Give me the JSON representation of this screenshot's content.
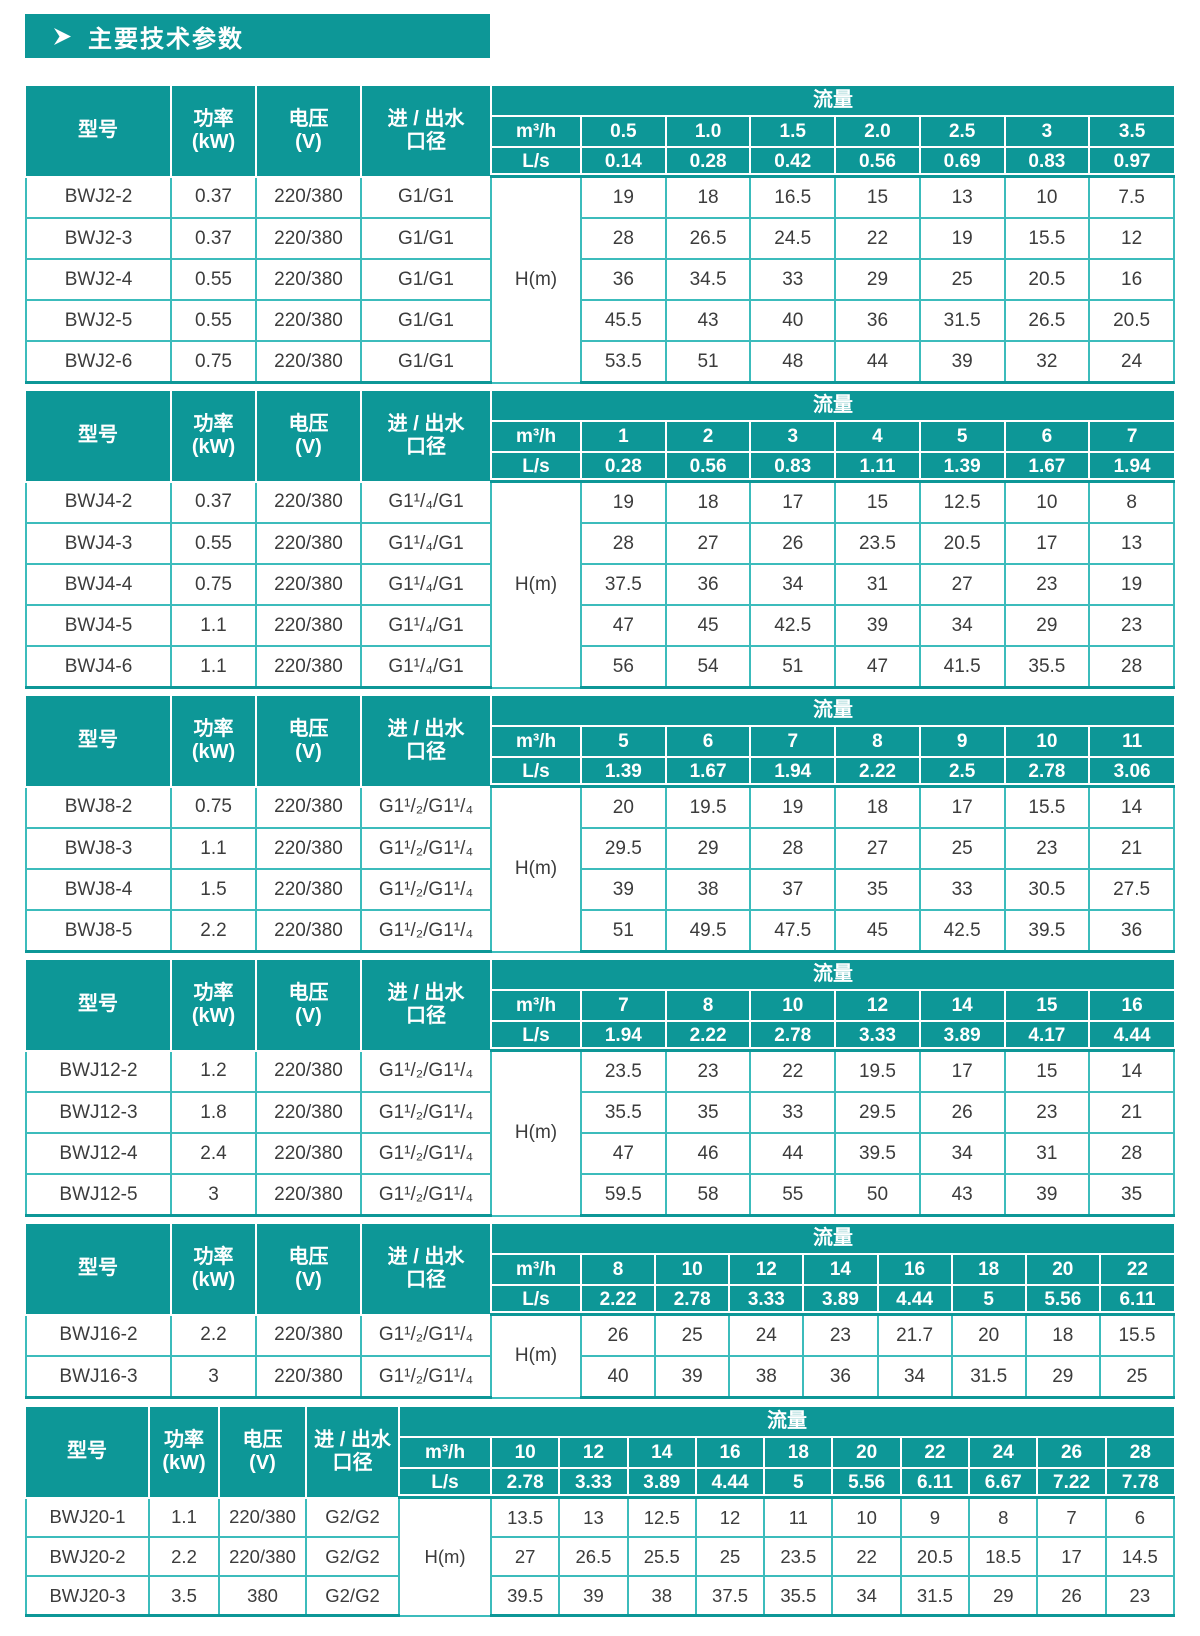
{
  "title": {
    "text": "主要技术参数"
  },
  "colors": {
    "teal": "#0d9797",
    "body_border": "#3cbcbc",
    "header_text": "#ffffff",
    "body_text": "#3c3c3c"
  },
  "column_headers": {
    "model": "型号",
    "power": "功率\n(kW)",
    "voltage": "电压\n(V)",
    "port": "进 / 出水\n口径",
    "flow": "流量",
    "m3h": "m³/h",
    "ls": "L/s",
    "head": "H(m)"
  },
  "tables": [
    {
      "flow_m3h": [
        "0.5",
        "1.0",
        "1.5",
        "2.0",
        "2.5",
        "3",
        "3.5"
      ],
      "flow_ls": [
        "0.14",
        "0.28",
        "0.42",
        "0.56",
        "0.69",
        "0.83",
        "0.97"
      ],
      "rows": [
        {
          "model": "BWJ2-2",
          "power": "0.37",
          "voltage": "220/380",
          "port": "G1/G1",
          "h": [
            "19",
            "18",
            "16.5",
            "15",
            "13",
            "10",
            "7.5"
          ]
        },
        {
          "model": "BWJ2-3",
          "power": "0.37",
          "voltage": "220/380",
          "port": "G1/G1",
          "h": [
            "28",
            "26.5",
            "24.5",
            "22",
            "19",
            "15.5",
            "12"
          ]
        },
        {
          "model": "BWJ2-4",
          "power": "0.55",
          "voltage": "220/380",
          "port": "G1/G1",
          "h": [
            "36",
            "34.5",
            "33",
            "29",
            "25",
            "20.5",
            "16"
          ]
        },
        {
          "model": "BWJ2-5",
          "power": "0.55",
          "voltage": "220/380",
          "port": "G1/G1",
          "h": [
            "45.5",
            "43",
            "40",
            "36",
            "31.5",
            "26.5",
            "20.5"
          ]
        },
        {
          "model": "BWJ2-6",
          "power": "0.75",
          "voltage": "220/380",
          "port": "G1/G1",
          "h": [
            "53.5",
            "51",
            "48",
            "44",
            "39",
            "32",
            "24"
          ]
        }
      ]
    },
    {
      "flow_m3h": [
        "1",
        "2",
        "3",
        "4",
        "5",
        "6",
        "7"
      ],
      "flow_ls": [
        "0.28",
        "0.56",
        "0.83",
        "1.11",
        "1.39",
        "1.67",
        "1.94"
      ],
      "rows": [
        {
          "model": "BWJ4-2",
          "power": "0.37",
          "voltage": "220/380",
          "port": "G1¹/₄/G1",
          "h": [
            "19",
            "18",
            "17",
            "15",
            "12.5",
            "10",
            "8"
          ]
        },
        {
          "model": "BWJ4-3",
          "power": "0.55",
          "voltage": "220/380",
          "port": "G1¹/₄/G1",
          "h": [
            "28",
            "27",
            "26",
            "23.5",
            "20.5",
            "17",
            "13"
          ]
        },
        {
          "model": "BWJ4-4",
          "power": "0.75",
          "voltage": "220/380",
          "port": "G1¹/₄/G1",
          "h": [
            "37.5",
            "36",
            "34",
            "31",
            "27",
            "23",
            "19"
          ]
        },
        {
          "model": "BWJ4-5",
          "power": "1.1",
          "voltage": "220/380",
          "port": "G1¹/₄/G1",
          "h": [
            "47",
            "45",
            "42.5",
            "39",
            "34",
            "29",
            "23"
          ]
        },
        {
          "model": "BWJ4-6",
          "power": "1.1",
          "voltage": "220/380",
          "port": "G1¹/₄/G1",
          "h": [
            "56",
            "54",
            "51",
            "47",
            "41.5",
            "35.5",
            "28"
          ]
        }
      ]
    },
    {
      "flow_m3h": [
        "5",
        "6",
        "7",
        "8",
        "9",
        "10",
        "11"
      ],
      "flow_ls": [
        "1.39",
        "1.67",
        "1.94",
        "2.22",
        "2.5",
        "2.78",
        "3.06"
      ],
      "rows": [
        {
          "model": "BWJ8-2",
          "power": "0.75",
          "voltage": "220/380",
          "port": "G1¹/₂/G1¹/₄",
          "h": [
            "20",
            "19.5",
            "19",
            "18",
            "17",
            "15.5",
            "14"
          ]
        },
        {
          "model": "BWJ8-3",
          "power": "1.1",
          "voltage": "220/380",
          "port": "G1¹/₂/G1¹/₄",
          "h": [
            "29.5",
            "29",
            "28",
            "27",
            "25",
            "23",
            "21"
          ]
        },
        {
          "model": "BWJ8-4",
          "power": "1.5",
          "voltage": "220/380",
          "port": "G1¹/₂/G1¹/₄",
          "h": [
            "39",
            "38",
            "37",
            "35",
            "33",
            "30.5",
            "27.5"
          ]
        },
        {
          "model": "BWJ8-5",
          "power": "2.2",
          "voltage": "220/380",
          "port": "G1¹/₂/G1¹/₄",
          "h": [
            "51",
            "49.5",
            "47.5",
            "45",
            "42.5",
            "39.5",
            "36"
          ]
        }
      ]
    },
    {
      "flow_m3h": [
        "7",
        "8",
        "10",
        "12",
        "14",
        "15",
        "16"
      ],
      "flow_ls": [
        "1.94",
        "2.22",
        "2.78",
        "3.33",
        "3.89",
        "4.17",
        "4.44"
      ],
      "rows": [
        {
          "model": "BWJ12-2",
          "power": "1.2",
          "voltage": "220/380",
          "port": "G1¹/₂/G1¹/₄",
          "h": [
            "23.5",
            "23",
            "22",
            "19.5",
            "17",
            "15",
            "14"
          ]
        },
        {
          "model": "BWJ12-3",
          "power": "1.8",
          "voltage": "220/380",
          "port": "G1¹/₂/G1¹/₄",
          "h": [
            "35.5",
            "35",
            "33",
            "29.5",
            "26",
            "23",
            "21"
          ]
        },
        {
          "model": "BWJ12-4",
          "power": "2.4",
          "voltage": "220/380",
          "port": "G1¹/₂/G1¹/₄",
          "h": [
            "47",
            "46",
            "44",
            "39.5",
            "34",
            "31",
            "28"
          ]
        },
        {
          "model": "BWJ12-5",
          "power": "3",
          "voltage": "220/380",
          "port": "G1¹/₂/G1¹/₄",
          "h": [
            "59.5",
            "58",
            "55",
            "50",
            "43",
            "39",
            "35"
          ]
        }
      ]
    },
    {
      "flow_m3h": [
        "8",
        "10",
        "12",
        "14",
        "16",
        "18",
        "20",
        "22"
      ],
      "flow_ls": [
        "2.22",
        "2.78",
        "3.33",
        "3.89",
        "4.44",
        "5",
        "5.56",
        "6.11"
      ],
      "rows": [
        {
          "model": "BWJ16-2",
          "power": "2.2",
          "voltage": "220/380",
          "port": "G1¹/₂/G1¹/₄",
          "h": [
            "26",
            "25",
            "24",
            "23",
            "21.7",
            "20",
            "18",
            "15.5"
          ]
        },
        {
          "model": "BWJ16-3",
          "power": "3",
          "voltage": "220/380",
          "port": "G1¹/₂/G1¹/₄",
          "h": [
            "40",
            "39",
            "38",
            "36",
            "34",
            "31.5",
            "29",
            "25"
          ]
        }
      ]
    },
    {
      "flow_m3h": [
        "10",
        "12",
        "14",
        "16",
        "18",
        "20",
        "22",
        "24",
        "26",
        "28"
      ],
      "flow_ls": [
        "2.78",
        "3.33",
        "3.89",
        "4.44",
        "5",
        "5.56",
        "6.11",
        "6.67",
        "7.22",
        "7.78"
      ],
      "rows": [
        {
          "model": "BWJ20-1",
          "power": "1.1",
          "voltage": "220/380",
          "port": "G2/G2",
          "h": [
            "13.5",
            "13",
            "12.5",
            "12",
            "11",
            "10",
            "9",
            "8",
            "7",
            "6"
          ]
        },
        {
          "model": "BWJ20-2",
          "power": "2.2",
          "voltage": "220/380",
          "port": "G2/G2",
          "h": [
            "27",
            "26.5",
            "25.5",
            "25",
            "23.5",
            "22",
            "20.5",
            "18.5",
            "17",
            "14.5"
          ]
        },
        {
          "model": "BWJ20-3",
          "power": "3.5",
          "voltage": "380",
          "port": "G2/G2",
          "h": [
            "39.5",
            "39",
            "38",
            "37.5",
            "35.5",
            "34",
            "31.5",
            "29",
            "26",
            "23"
          ]
        }
      ]
    }
  ]
}
